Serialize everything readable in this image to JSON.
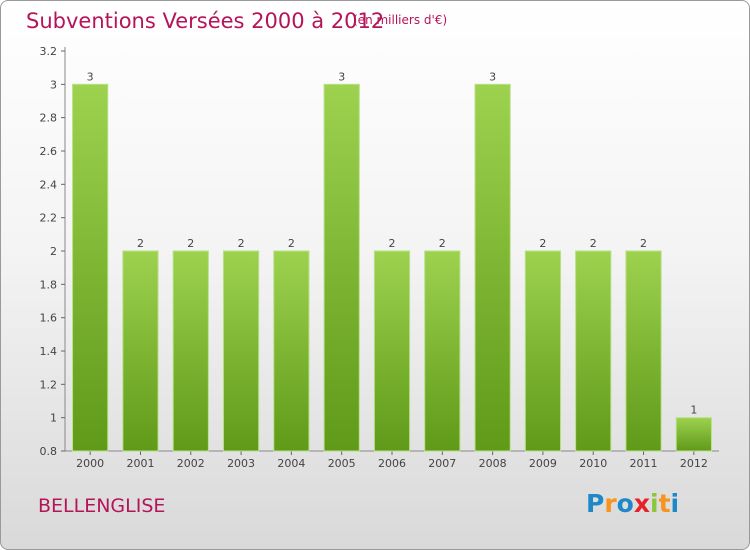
{
  "chart_data": {
    "type": "bar",
    "title": "Subventions Versées 2000 à 2012",
    "subtitle": "(en milliers d'€)",
    "categories": [
      "2000",
      "2001",
      "2002",
      "2003",
      "2004",
      "2005",
      "2006",
      "2007",
      "2008",
      "2009",
      "2010",
      "2011",
      "2012"
    ],
    "values": [
      3,
      2,
      2,
      2,
      2,
      3,
      2,
      2,
      3,
      2,
      2,
      2,
      1
    ],
    "data_labels": [
      "3",
      "2",
      "2",
      "2",
      "2",
      "3",
      "2",
      "2",
      "3",
      "2",
      "2",
      "2",
      "1"
    ],
    "ylim": [
      0.8,
      3.2
    ],
    "yticks": [
      0.8,
      1,
      1.2,
      1.4,
      1.6,
      1.8,
      2,
      2.2,
      2.4,
      2.6,
      2.8,
      3,
      3.2
    ],
    "ytick_labels": [
      "0.8",
      "1",
      "1.2",
      "1.4",
      "1.6",
      "1.8",
      "2",
      "2.2",
      "2.4",
      "2.6",
      "2.8",
      "3",
      "3.2"
    ],
    "grid": false,
    "bar_color": "#8cc63e"
  },
  "commune_name": "BELLENGLISE",
  "logo": {
    "letters": [
      "P",
      "r",
      "o",
      "x",
      "i",
      "t",
      "i"
    ],
    "colors": [
      "#1e88c8",
      "#f7941d",
      "#1e88c8",
      "#e8202a",
      "#8cc63e",
      "#f7941d",
      "#1e88c8"
    ]
  }
}
